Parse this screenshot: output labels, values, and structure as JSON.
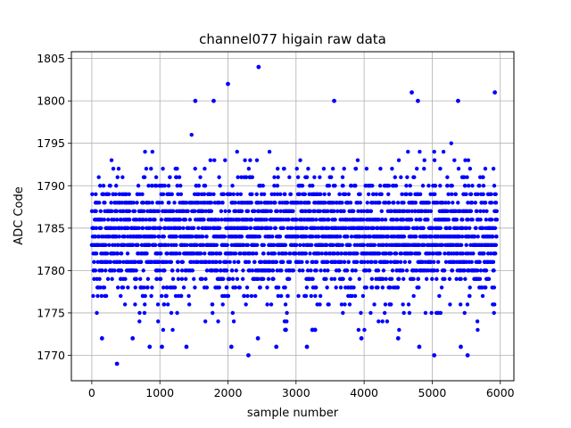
{
  "chart_data": {
    "type": "scatter",
    "title": "channel077 higain raw data",
    "xlabel": "sample number",
    "ylabel": "ADC Code",
    "xlim": [
      -300,
      6200
    ],
    "ylim": [
      1767,
      1805.8
    ],
    "xticks": [
      0,
      1000,
      2000,
      3000,
      4000,
      5000,
      6000
    ],
    "yticks": [
      1770,
      1775,
      1780,
      1785,
      1790,
      1795,
      1800,
      1805
    ],
    "grid": true,
    "marker_color": "#0000ff",
    "n_samples": 5952,
    "series": [
      {
        "name": "",
        "description": "ADC samples, integer codes, dense band between 1775 and 1795 centered near 1783-1785",
        "outliers": [
          [
            2450,
            1804
          ],
          [
            2000,
            1802
          ],
          [
            4700,
            1801
          ],
          [
            5920,
            1801
          ],
          [
            1520,
            1800
          ],
          [
            1790,
            1800
          ],
          [
            3560,
            1800
          ],
          [
            4790,
            1800
          ],
          [
            5380,
            1800
          ],
          [
            370,
            1769
          ],
          [
            2300,
            1770
          ],
          [
            5030,
            1770
          ],
          [
            5520,
            1770
          ],
          [
            150,
            1772
          ],
          [
            600,
            1772
          ],
          [
            1390,
            1771
          ],
          [
            2050,
            1771
          ],
          [
            2440,
            1772
          ],
          [
            850,
            1771
          ],
          [
            1030,
            1771
          ],
          [
            4500,
            1772
          ],
          [
            5420,
            1771
          ],
          [
            3240,
            1773
          ],
          [
            3280,
            1773
          ],
          [
            2850,
            1773
          ],
          [
            3960,
            1772
          ],
          [
            4810,
            1771
          ],
          [
            3160,
            1771
          ],
          [
            2710,
            1771
          ]
        ]
      }
    ]
  }
}
